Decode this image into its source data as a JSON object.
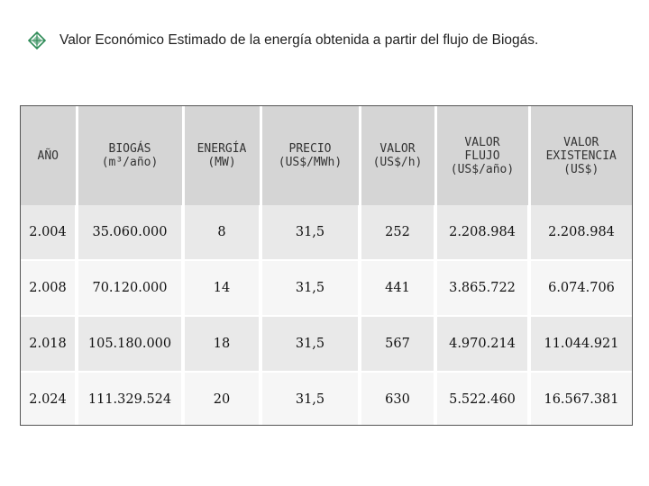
{
  "header": {
    "title": "Valor Económico Estimado de la energía obtenida a partir del flujo de Biogás.",
    "bullet_icon": "diamond-bullet-icon",
    "bullet_color": "#2e8b57"
  },
  "table": {
    "columns": [
      {
        "label": "AÑO"
      },
      {
        "label": "BIOGÁS\n(m³/año)"
      },
      {
        "label": "ENERGÍA\n(MW)"
      },
      {
        "label": "PRECIO\n(US$/MWh)"
      },
      {
        "label": "VALOR\n(US$/h)"
      },
      {
        "label": "VALOR\nFLUJO\n(US$/año)"
      },
      {
        "label": "VALOR\nEXISTENCIA\n(US$)"
      }
    ],
    "rows": [
      [
        "2.004",
        "35.060.000",
        "8",
        "31,5",
        "252",
        "2.208.984",
        "2.208.984"
      ],
      [
        "2.008",
        "70.120.000",
        "14",
        "31,5",
        "441",
        "3.865.722",
        "6.074.706"
      ],
      [
        "2.018",
        "105.180.000",
        "18",
        "31,5",
        "567",
        "4.970.214",
        "11.044.921"
      ],
      [
        "2.024",
        "111.329.524",
        "20",
        "31,5",
        "630",
        "5.522.460",
        "16.567.381"
      ]
    ]
  }
}
